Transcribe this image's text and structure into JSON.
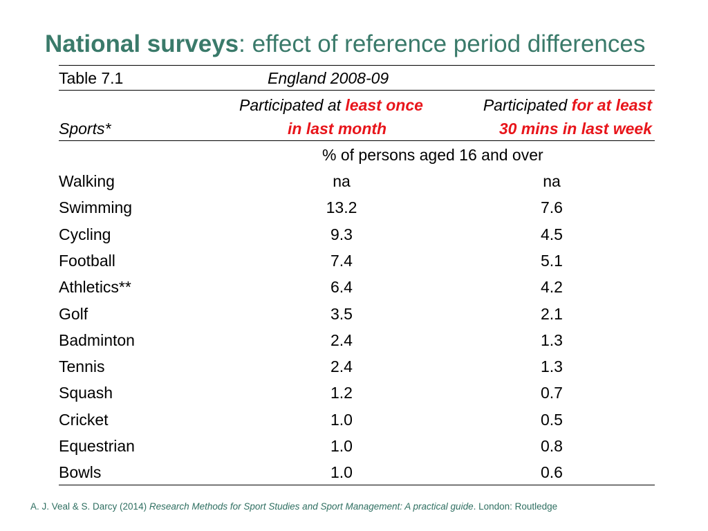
{
  "title": {
    "bold": "National surveys",
    "rest": ": effect of reference period differences"
  },
  "table": {
    "label": "Table 7.1",
    "region": "England 2008-09",
    "col1_header": "Sports*",
    "col2_header": {
      "line1_normal": "Participated at ",
      "line1_red": "least once",
      "line2_red": "in last month"
    },
    "col3_header": {
      "line1_normal": "Participated ",
      "line1_red_f": "f",
      "line1_red": "or at least",
      "line2_red": "30 mins in last week"
    },
    "units": "% of persons aged 16 and over",
    "rows": [
      {
        "sport": "Walking",
        "month": "na",
        "week": "na"
      },
      {
        "sport": "Swimming",
        "month": "13.2",
        "week": "7.6"
      },
      {
        "sport": "Cycling",
        "month": "9.3",
        "week": "4.5"
      },
      {
        "sport": "Football",
        "month": "7.4",
        "week": "5.1"
      },
      {
        "sport": "Athletics**",
        "month": "6.4",
        "week": "4.2"
      },
      {
        "sport": "Golf",
        "month": "3.5",
        "week": "2.1"
      },
      {
        "sport": "Badminton",
        "month": "2.4",
        "week": "1.3"
      },
      {
        "sport": "Tennis",
        "month": "2.4",
        "week": "1.3"
      },
      {
        "sport": "Squash",
        "month": "1.2",
        "week": "0.7"
      },
      {
        "sport": "Cricket",
        "month": "1.0",
        "week": "0.5"
      },
      {
        "sport": "Equestrian",
        "month": "1.0",
        "week": "0.8"
      },
      {
        "sport": "Bowls",
        "month": "1.0",
        "week": "0.6"
      }
    ]
  },
  "footer": {
    "authors": "A. J. Veal & S. Darcy (2014) ",
    "book": "Research Methods for Sport Studies and Sport Management: A practical guide",
    "publisher": ". London: Routledge"
  },
  "colors": {
    "title": "#3a7a6a",
    "highlight": "#e8151b",
    "footer": "#2f6f61"
  }
}
